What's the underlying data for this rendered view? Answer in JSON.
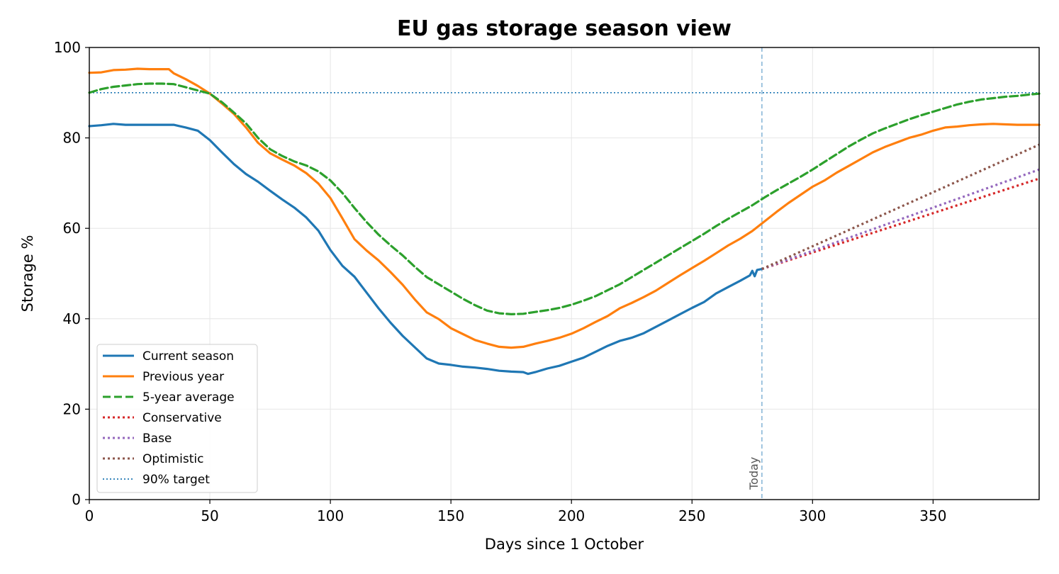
{
  "chart_data": {
    "type": "line",
    "title": "EU gas storage season view",
    "xlabel": "Days since 1 October",
    "ylabel": "Storage %",
    "xlim": [
      0,
      394
    ],
    "ylim": [
      0,
      100
    ],
    "xticks": [
      0,
      50,
      100,
      150,
      200,
      250,
      300,
      350
    ],
    "yticks": [
      0,
      20,
      40,
      60,
      80,
      100
    ],
    "grid": true,
    "legend_position": "lower-left",
    "today_annotation": {
      "x": 279,
      "label": "Today"
    },
    "target": {
      "name": "90% target",
      "value": 90,
      "color": "#1f77b4",
      "style": "dotted"
    },
    "series": [
      {
        "name": "Current season",
        "color": "#1f77b4",
        "style": "solid",
        "x": [
          0,
          5,
          10,
          15,
          20,
          25,
          30,
          35,
          40,
          45,
          50,
          55,
          60,
          65,
          70,
          75,
          80,
          85,
          90,
          95,
          100,
          105,
          110,
          115,
          120,
          125,
          130,
          135,
          140,
          145,
          150,
          155,
          160,
          165,
          170,
          175,
          180,
          182,
          185,
          190,
          195,
          200,
          205,
          210,
          215,
          220,
          225,
          230,
          235,
          240,
          245,
          250,
          255,
          260,
          265,
          270,
          274,
          275,
          276,
          277,
          279
        ],
        "y": [
          82.6,
          82.8,
          83.1,
          82.9,
          82.9,
          82.9,
          82.9,
          82.9,
          82.3,
          81.6,
          79.5,
          76.8,
          74.2,
          72.0,
          70.3,
          68.3,
          66.4,
          64.6,
          62.4,
          59.5,
          55.2,
          51.7,
          49.3,
          45.8,
          42.3,
          39.1,
          36.2,
          33.7,
          31.2,
          30.1,
          29.8,
          29.4,
          29.2,
          28.9,
          28.5,
          28.3,
          28.2,
          27.8,
          28.2,
          29.0,
          29.6,
          30.5,
          31.4,
          32.7,
          34.0,
          35.1,
          35.8,
          36.8,
          38.2,
          39.6,
          41.0,
          42.4,
          43.7,
          45.6,
          47.0,
          48.4,
          49.6,
          50.6,
          49.4,
          50.8,
          51.0
        ]
      },
      {
        "name": "Previous year",
        "color": "#ff7f0e",
        "style": "solid",
        "x": [
          0,
          5,
          10,
          15,
          20,
          25,
          30,
          33,
          35,
          40,
          45,
          50,
          55,
          60,
          65,
          70,
          75,
          80,
          85,
          90,
          95,
          100,
          105,
          110,
          115,
          120,
          125,
          130,
          135,
          140,
          145,
          150,
          155,
          160,
          165,
          170,
          175,
          180,
          185,
          190,
          195,
          200,
          205,
          210,
          215,
          220,
          225,
          230,
          235,
          240,
          245,
          250,
          255,
          260,
          265,
          270,
          275,
          280,
          285,
          290,
          295,
          300,
          305,
          310,
          315,
          320,
          325,
          330,
          335,
          340,
          345,
          350,
          355,
          360,
          365,
          370,
          375,
          380,
          385,
          390,
          394
        ],
        "y": [
          94.4,
          94.5,
          95.0,
          95.1,
          95.3,
          95.2,
          95.2,
          95.2,
          94.3,
          93.0,
          91.5,
          89.8,
          87.6,
          85.3,
          82.3,
          78.9,
          76.6,
          75.2,
          73.9,
          72.2,
          69.9,
          66.7,
          62.2,
          57.6,
          55.1,
          52.9,
          50.3,
          47.5,
          44.3,
          41.4,
          39.9,
          37.9,
          36.6,
          35.3,
          34.5,
          33.8,
          33.6,
          33.8,
          34.5,
          35.1,
          35.8,
          36.7,
          37.9,
          39.3,
          40.6,
          42.3,
          43.5,
          44.8,
          46.2,
          47.9,
          49.6,
          51.2,
          52.8,
          54.5,
          56.2,
          57.7,
          59.4,
          61.5,
          63.6,
          65.6,
          67.4,
          69.2,
          70.6,
          72.3,
          73.8,
          75.3,
          76.8,
          78.0,
          79.0,
          80.0,
          80.7,
          81.6,
          82.3,
          82.5,
          82.8,
          83.0,
          83.1,
          83.0,
          82.9,
          82.9,
          82.9
        ]
      },
      {
        "name": "5-year average",
        "color": "#2ca02c",
        "style": "dashed",
        "x": [
          0,
          5,
          10,
          15,
          20,
          25,
          30,
          35,
          40,
          45,
          50,
          55,
          60,
          65,
          70,
          75,
          80,
          85,
          90,
          95,
          100,
          105,
          110,
          115,
          120,
          125,
          130,
          135,
          140,
          145,
          150,
          155,
          160,
          165,
          170,
          175,
          180,
          185,
          190,
          195,
          200,
          205,
          210,
          215,
          220,
          225,
          230,
          235,
          240,
          245,
          250,
          255,
          260,
          265,
          270,
          275,
          280,
          285,
          290,
          295,
          300,
          305,
          310,
          315,
          320,
          325,
          330,
          335,
          340,
          345,
          350,
          355,
          360,
          365,
          370,
          375,
          380,
          385,
          390,
          394
        ],
        "y": [
          90.0,
          90.8,
          91.3,
          91.6,
          91.9,
          92.0,
          92.0,
          91.9,
          91.2,
          90.5,
          89.8,
          87.9,
          85.6,
          83.2,
          80.0,
          77.5,
          76.0,
          74.8,
          73.9,
          72.6,
          70.6,
          67.8,
          64.5,
          61.4,
          58.6,
          56.2,
          54.0,
          51.5,
          49.2,
          47.6,
          46.0,
          44.4,
          43.0,
          41.8,
          41.2,
          41.0,
          41.1,
          41.5,
          41.9,
          42.4,
          43.1,
          44.0,
          45.0,
          46.3,
          47.6,
          49.2,
          50.8,
          52.4,
          54.0,
          55.6,
          57.2,
          58.8,
          60.5,
          62.1,
          63.6,
          65.1,
          66.8,
          68.4,
          69.9,
          71.4,
          73.0,
          74.7,
          76.4,
          78.1,
          79.6,
          81.0,
          82.1,
          83.1,
          84.1,
          85.0,
          85.8,
          86.6,
          87.4,
          88.0,
          88.5,
          88.8,
          89.1,
          89.3,
          89.6,
          89.8
        ]
      },
      {
        "name": "Conservative",
        "color": "#d62728",
        "style": "dotted",
        "x": [
          279,
          394
        ],
        "y": [
          51.0,
          71.0
        ]
      },
      {
        "name": "Base",
        "color": "#9467bd",
        "style": "dotted",
        "x": [
          279,
          394
        ],
        "y": [
          51.0,
          73.0
        ]
      },
      {
        "name": "Optimistic",
        "color": "#8c564b",
        "style": "dotted",
        "x": [
          279,
          394
        ],
        "y": [
          51.0,
          78.5
        ]
      }
    ]
  }
}
